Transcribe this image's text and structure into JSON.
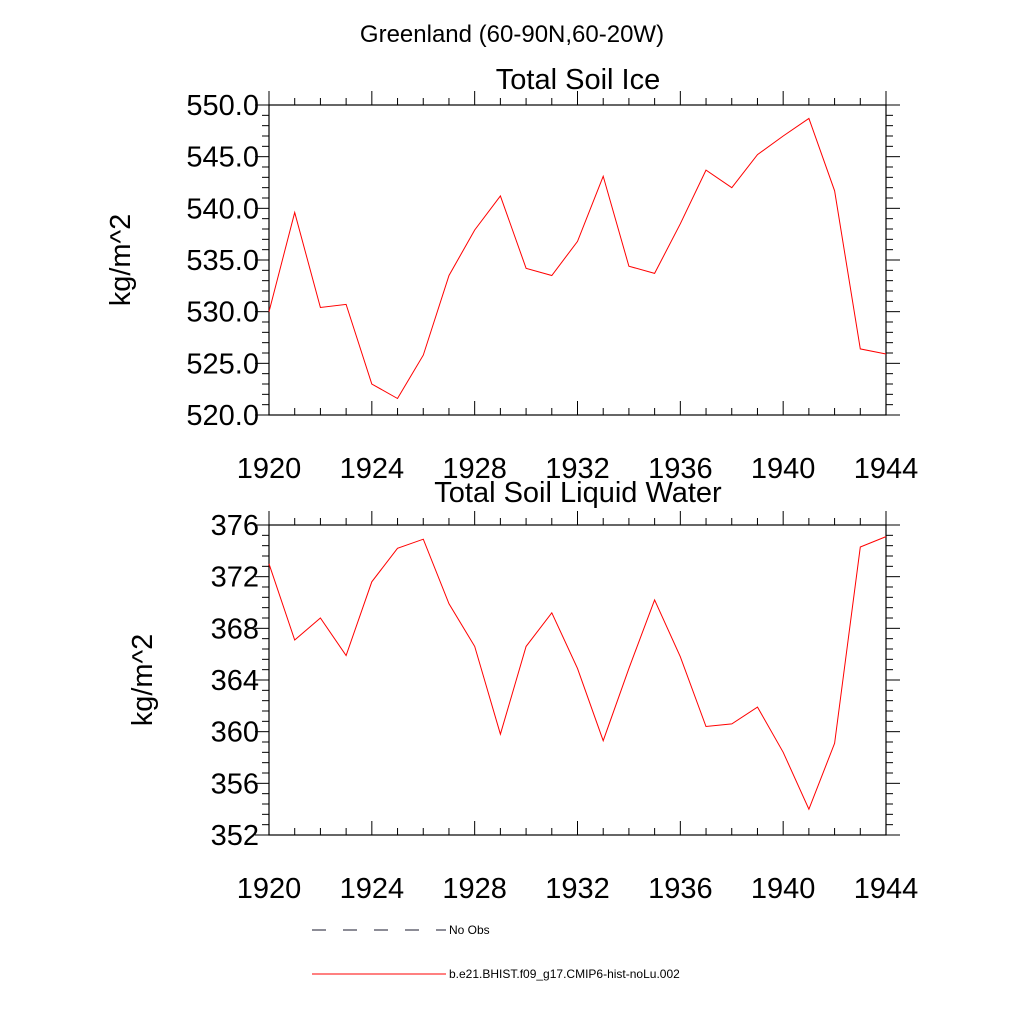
{
  "figure": {
    "title": "Greenland (60-90N,60-20W)"
  },
  "chart_data": [
    {
      "type": "line",
      "title": "Total Soil Ice",
      "xlabel": "",
      "ylabel": "kg/m^2",
      "xlim": [
        1920,
        1944
      ],
      "ylim": [
        520,
        550
      ],
      "xticks": [
        1920,
        1924,
        1928,
        1932,
        1936,
        1940,
        1944
      ],
      "xtick_labels": [
        "1920",
        "1924",
        "1928",
        "1932",
        "1936",
        "1940",
        "1944"
      ],
      "yticks": [
        520,
        525,
        530,
        535,
        540,
        545,
        550
      ],
      "ytick_labels": [
        "520.0",
        "525.0",
        "530.0",
        "535.0",
        "540.0",
        "545.0",
        "550.0"
      ],
      "grid": false,
      "series": [
        {
          "name": "b.e21.BHIST.f09_g17.CMIP6-hist-noLu.002",
          "color": "#ff0000",
          "x": [
            1920,
            1921,
            1922,
            1923,
            1924,
            1925,
            1926,
            1927,
            1928,
            1929,
            1930,
            1931,
            1932,
            1933,
            1934,
            1935,
            1936,
            1937,
            1938,
            1939,
            1940,
            1941,
            1942,
            1943,
            1944
          ],
          "y": [
            530.0,
            539.6,
            530.4,
            530.7,
            523.0,
            521.6,
            525.8,
            533.5,
            537.9,
            541.2,
            534.2,
            533.5,
            536.8,
            543.1,
            534.4,
            533.7,
            538.5,
            543.7,
            542.0,
            545.2,
            547.0,
            548.7,
            541.7,
            526.4,
            525.9
          ]
        }
      ]
    },
    {
      "type": "line",
      "title": "Total Soil Liquid Water",
      "xlabel": "",
      "ylabel": "kg/m^2",
      "xlim": [
        1920,
        1944
      ],
      "ylim": [
        352,
        376
      ],
      "xticks": [
        1920,
        1924,
        1928,
        1932,
        1936,
        1940,
        1944
      ],
      "xtick_labels": [
        "1920",
        "1924",
        "1928",
        "1932",
        "1936",
        "1940",
        "1944"
      ],
      "yticks": [
        352,
        356,
        360,
        364,
        368,
        372,
        376
      ],
      "ytick_labels": [
        "352",
        "356",
        "360",
        "364",
        "368",
        "372",
        "376"
      ],
      "grid": false,
      "series": [
        {
          "name": "b.e21.BHIST.f09_g17.CMIP6-hist-noLu.002",
          "color": "#ff0000",
          "x": [
            1920,
            1921,
            1922,
            1923,
            1924,
            1925,
            1926,
            1927,
            1928,
            1929,
            1930,
            1931,
            1932,
            1933,
            1934,
            1935,
            1936,
            1937,
            1938,
            1939,
            1940,
            1941,
            1942,
            1943,
            1944
          ],
          "y": [
            373.0,
            367.1,
            368.8,
            365.9,
            371.6,
            374.2,
            374.9,
            369.9,
            366.6,
            359.8,
            366.6,
            369.2,
            364.9,
            359.3,
            364.9,
            370.2,
            365.8,
            360.4,
            360.6,
            361.9,
            358.4,
            354.0,
            359.1,
            374.3,
            375.1
          ]
        }
      ]
    }
  ],
  "legend": {
    "placement": "bottom",
    "entries": [
      {
        "label": "No Obs",
        "style": "dashed",
        "color": "#1a1a2e"
      },
      {
        "label": "b.e21.BHIST.f09_g17.CMIP6-hist-noLu.002",
        "style": "solid",
        "color": "#ff0000"
      }
    ]
  }
}
